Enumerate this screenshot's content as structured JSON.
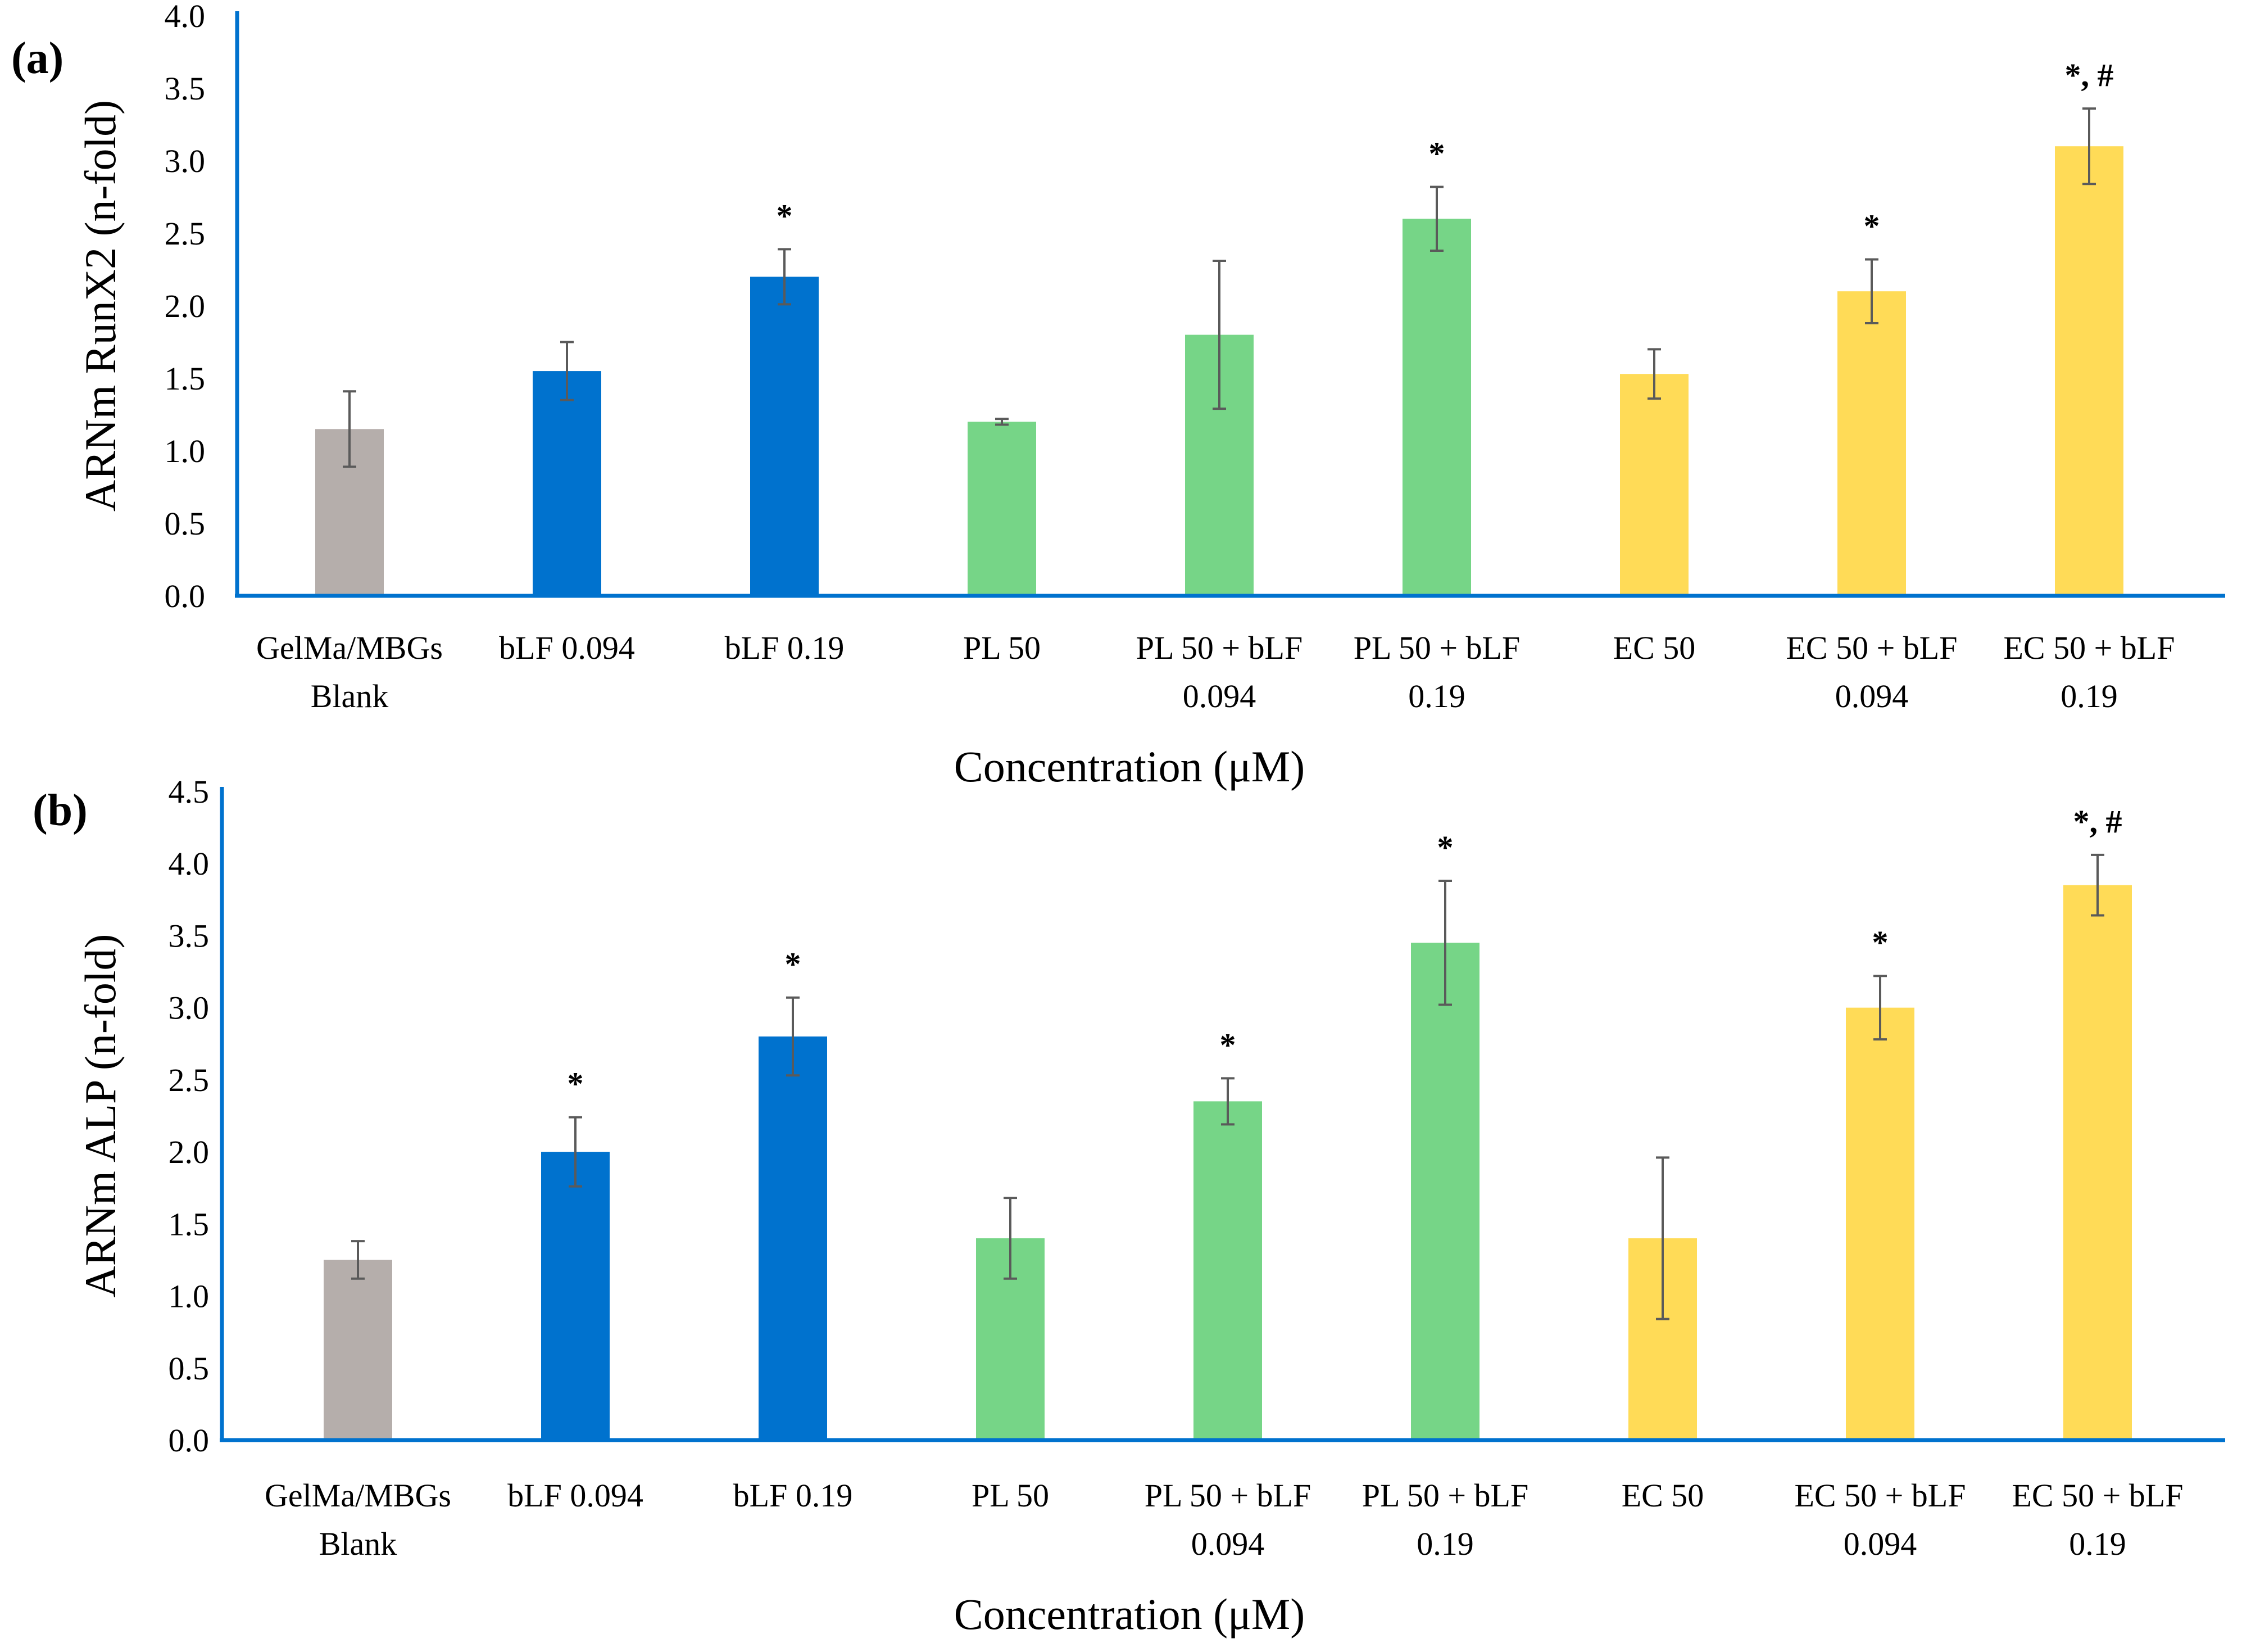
{
  "chart_data": [
    {
      "type": "bar",
      "panel_label": "(a)",
      "ylabel": "ARNm RunX2  (n-fold)",
      "xlabel": "Concentration (μM)",
      "ylim": [
        0,
        4.0
      ],
      "yticks": [
        "0.0",
        "0.5",
        "1.0",
        "1.5",
        "2.0",
        "2.5",
        "3.0",
        "3.5",
        "4.0"
      ],
      "categories": [
        [
          "GelMa/MBGs",
          "Blank"
        ],
        [
          "bLF 0.094"
        ],
        [
          "bLF 0.19"
        ],
        [
          "PL 50"
        ],
        [
          "PL 50 + bLF",
          "0.094"
        ],
        [
          "PL 50 + bLF",
          "0.19"
        ],
        [
          "EC 50"
        ],
        [
          "EC 50 + bLF",
          "0.094"
        ],
        [
          "EC 50 + bLF",
          "0.19"
        ]
      ],
      "values": [
        1.15,
        1.55,
        2.2,
        1.2,
        1.8,
        2.6,
        1.53,
        2.1,
        3.1
      ],
      "errors": [
        0.26,
        0.2,
        0.19,
        0.02,
        0.51,
        0.22,
        0.17,
        0.22,
        0.26
      ],
      "significance": [
        "",
        "",
        "*",
        "",
        "",
        "*",
        "",
        "*",
        "*, #"
      ],
      "colors": [
        "#B5AEAB",
        "#0072CE",
        "#0072CE",
        "#76D587",
        "#76D587",
        "#76D587",
        "#FFDB57",
        "#FFDB57",
        "#FFDB57"
      ]
    },
    {
      "type": "bar",
      "panel_label": "(b)",
      "ylabel": "ARNm  ALP  (n-fold)",
      "xlabel": "Concentration (μM)",
      "ylim": [
        0,
        4.5
      ],
      "yticks": [
        "0.0",
        "0.5",
        "1.0",
        "1.5",
        "2.0",
        "2.5",
        "3.0",
        "3.5",
        "4.0",
        "4.5"
      ],
      "categories": [
        [
          "GelMa/MBGs",
          "Blank"
        ],
        [
          "bLF 0.094"
        ],
        [
          "bLF 0.19"
        ],
        [
          "PL 50"
        ],
        [
          "PL 50 + bLF",
          "0.094"
        ],
        [
          "PL 50 + bLF",
          "0.19"
        ],
        [
          "EC 50"
        ],
        [
          "EC 50 + bLF",
          "0.094"
        ],
        [
          "EC 50 + bLF",
          "0.19"
        ]
      ],
      "values": [
        1.25,
        2.0,
        2.8,
        1.4,
        2.35,
        3.45,
        1.4,
        3.0,
        3.85
      ],
      "errors": [
        0.13,
        0.24,
        0.27,
        0.28,
        0.16,
        0.43,
        0.56,
        0.22,
        0.21
      ],
      "significance": [
        "",
        "*",
        "*",
        "",
        "*",
        "*",
        "",
        "*",
        "*, #"
      ],
      "colors": [
        "#B5AEAB",
        "#0072CE",
        "#0072CE",
        "#76D587",
        "#76D587",
        "#76D587",
        "#FFDB57",
        "#FFDB57",
        "#FFDB57"
      ]
    }
  ],
  "colors": {
    "axis": "#0072CE",
    "errorbar": "#5A5A5A"
  }
}
